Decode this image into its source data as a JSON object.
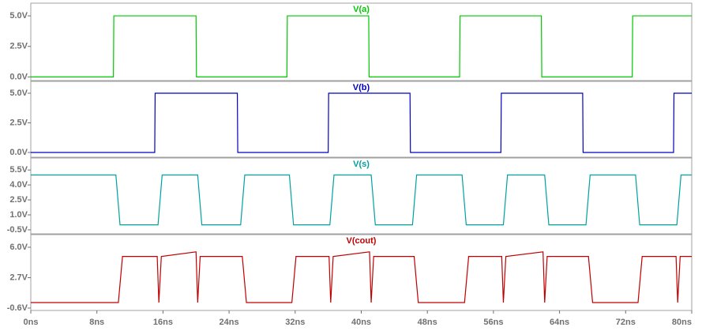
{
  "chart_data": [
    {
      "type": "line",
      "xlim": [
        0,
        80
      ],
      "ylim": [
        -0.3,
        6.04
      ],
      "yticks": [
        {
          "value": 5,
          "label": "5.0V"
        },
        {
          "value": 2.5,
          "label": "2.5V"
        },
        {
          "value": 0,
          "label": "0.0V"
        }
      ],
      "x": [
        0,
        10,
        10.05,
        20,
        20.05,
        31,
        31.05,
        40.9,
        40.95,
        51.9,
        51.95,
        61.8,
        61.85,
        72.8,
        72.85,
        80
      ],
      "series": [
        {
          "name": "V(a)",
          "color": "#00c800",
          "values": [
            0,
            0,
            5,
            5,
            0,
            0,
            5,
            5,
            0,
            0,
            5,
            5,
            0,
            0,
            5,
            5
          ]
        }
      ]
    },
    {
      "type": "line",
      "xlim": [
        0,
        80
      ],
      "ylim": [
        -0.4,
        6.0
      ],
      "yticks": [
        {
          "value": 5,
          "label": "5.0V"
        },
        {
          "value": 2.5,
          "label": "2.5V"
        },
        {
          "value": 0,
          "label": "0.0V"
        }
      ],
      "x": [
        0,
        15,
        15.05,
        25,
        25.05,
        36,
        36.05,
        45.9,
        45.95,
        56.9,
        56.95,
        66.8,
        66.85,
        77.8,
        77.85,
        80
      ],
      "series": [
        {
          "name": "V(b)",
          "color": "#0000c0",
          "values": [
            0,
            0,
            5,
            5,
            0,
            0,
            5,
            5,
            0,
            0,
            5,
            5,
            0,
            0,
            5,
            5
          ]
        }
      ]
    },
    {
      "type": "line",
      "xlim": [
        0,
        80
      ],
      "ylim": [
        -0.9,
        6.7
      ],
      "yticks": [
        {
          "value": 5.5,
          "label": "5.5V"
        },
        {
          "value": 4,
          "label": "4.0V"
        },
        {
          "value": 2.5,
          "label": "2.5V"
        },
        {
          "value": 1,
          "label": "1.0V"
        },
        {
          "value": -0.5,
          "label": "-0.5V"
        }
      ],
      "x": [
        0,
        10.3,
        10.8,
        15.4,
        15.9,
        20.2,
        20.7,
        25.4,
        25.9,
        31.3,
        31.8,
        36.2,
        36.7,
        41.2,
        41.7,
        46.2,
        46.7,
        52.2,
        52.7,
        57.2,
        57.7,
        62.2,
        62.7,
        67.2,
        67.7,
        73.2,
        73.7,
        78.2,
        78.7,
        80
      ],
      "series": [
        {
          "name": "V(s)",
          "color": "#00a0a0",
          "values": [
            5,
            5,
            0,
            0,
            5,
            5,
            0,
            0,
            5,
            5,
            0,
            0,
            5,
            5,
            0,
            0,
            5,
            5,
            0,
            0,
            5,
            5,
            0,
            0,
            5,
            5,
            0,
            0,
            5,
            5
          ]
        }
      ]
    },
    {
      "type": "line",
      "xlim": [
        0,
        80
      ],
      "ylim": [
        -0.86,
        7.37
      ],
      "yticks": [
        {
          "value": 6,
          "label": "6.0V"
        },
        {
          "value": 2.7,
          "label": "2.7V"
        },
        {
          "value": -0.6,
          "label": "-0.6V"
        }
      ],
      "xticks": [
        {
          "value": 0,
          "label": "0ns"
        },
        {
          "value": 8,
          "label": "8ns"
        },
        {
          "value": 16,
          "label": "16ns"
        },
        {
          "value": 24,
          "label": "24ns"
        },
        {
          "value": 32,
          "label": "32ns"
        },
        {
          "value": 40,
          "label": "40ns"
        },
        {
          "value": 48,
          "label": "48ns"
        },
        {
          "value": 56,
          "label": "56ns"
        },
        {
          "value": 64,
          "label": "64ns"
        },
        {
          "value": 72,
          "label": "72ns"
        },
        {
          "value": 80,
          "label": "80ns"
        }
      ],
      "x": [
        0,
        10.6,
        11.1,
        15.3,
        15.5,
        15.8,
        20.0,
        20.2,
        20.5,
        25.6,
        26.1,
        31.6,
        32.1,
        36.1,
        36.3,
        36.6,
        41.0,
        41.2,
        41.5,
        46.4,
        46.9,
        52.5,
        53.0,
        57.0,
        57.2,
        57.5,
        62.0,
        62.2,
        62.5,
        67.5,
        68.0,
        73.5,
        74.0,
        78.1,
        78.3,
        78.6,
        80
      ],
      "series": [
        {
          "name": "V(cout)",
          "color": "#c00000",
          "values": [
            0,
            0,
            5,
            5,
            0,
            5,
            5.5,
            0,
            5,
            5,
            0,
            0,
            5,
            5,
            0,
            5,
            5.5,
            0,
            5,
            5,
            0,
            0,
            5,
            5,
            0,
            5,
            5.5,
            0,
            5,
            5,
            0,
            0,
            5,
            5,
            0,
            5,
            5
          ]
        }
      ]
    }
  ]
}
